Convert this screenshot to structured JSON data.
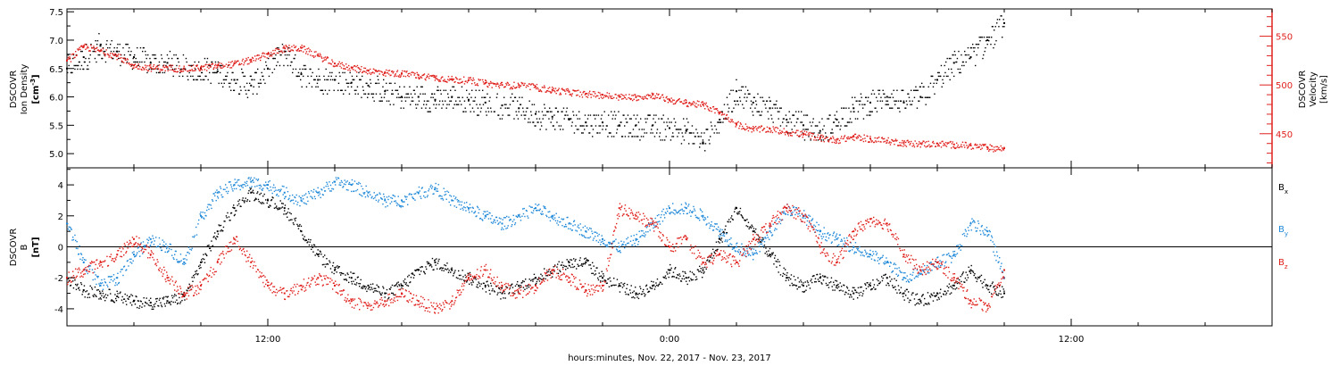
{
  "colors": {
    "black": "#000000",
    "red": "#e0201c",
    "blue": "#1e88d8"
  },
  "xaxis": {
    "label": "hours:minutes, Nov. 22, 2017 - Nov. 23, 2017",
    "range_hours": [
      6,
      42
    ],
    "ticks": [
      {
        "hour": 12,
        "label": "12:00"
      },
      {
        "hour": 24,
        "label": "0:00"
      },
      {
        "hour": 36,
        "label": "12:00"
      }
    ],
    "minor_step_hours": 2
  },
  "chart_data": [
    {
      "type": "scatter",
      "name": "plasma",
      "ylabel_lines": [
        "DSCOVR",
        "Ion Density"
      ],
      "yunit": "[cm^-3]",
      "ylim": [
        4.75,
        7.55
      ],
      "yticks": [
        5.0,
        5.5,
        6.0,
        6.5,
        7.0,
        7.5
      ],
      "y2label_lines": [
        "DSCOVR",
        "Velocity"
      ],
      "y2unit": "[km/s]",
      "y2lim": [
        415,
        578
      ],
      "y2ticks": [
        450,
        500,
        550
      ],
      "series": [
        {
          "name": "",
          "axis": "left",
          "color": "black",
          "x": [
            6.0,
            6.5,
            7.0,
            7.5,
            8.0,
            8.5,
            9.0,
            9.5,
            10.0,
            10.5,
            11.0,
            11.5,
            12.0,
            12.5,
            13.0,
            13.5,
            14.0,
            14.5,
            15.0,
            15.5,
            16.0,
            16.5,
            17.0,
            17.5,
            18.0,
            18.5,
            19.0,
            19.5,
            20.0,
            20.5,
            21.0,
            21.5,
            22.0,
            22.5,
            23.0,
            23.5,
            24.0,
            24.5,
            25.0,
            25.5,
            26.0,
            26.5,
            27.0,
            27.5,
            28.0,
            28.5,
            29.0,
            29.5,
            30.0,
            30.5,
            31.0,
            31.5,
            32.0,
            32.5,
            33.0,
            33.5,
            34.0
          ],
          "y": [
            6.5,
            6.7,
            6.9,
            6.8,
            6.7,
            6.6,
            6.6,
            6.5,
            6.5,
            6.45,
            6.3,
            6.2,
            6.5,
            6.8,
            6.4,
            6.3,
            6.3,
            6.25,
            6.2,
            6.1,
            6.0,
            6.0,
            5.95,
            6.0,
            5.95,
            5.9,
            5.85,
            5.8,
            5.7,
            5.65,
            5.6,
            5.55,
            5.55,
            5.5,
            5.5,
            5.5,
            5.45,
            5.4,
            5.2,
            5.6,
            6.1,
            5.9,
            5.8,
            5.6,
            5.5,
            5.4,
            5.6,
            5.8,
            5.9,
            6.0,
            5.9,
            6.0,
            6.3,
            6.6,
            6.7,
            7.0,
            7.3
          ]
        },
        {
          "name": "",
          "axis": "right",
          "color": "red",
          "x": [
            6.0,
            6.5,
            7.0,
            7.5,
            8.0,
            8.5,
            9.0,
            9.5,
            10.0,
            10.5,
            11.0,
            11.5,
            12.0,
            12.5,
            13.0,
            13.5,
            14.0,
            14.5,
            15.0,
            15.5,
            16.0,
            16.5,
            17.0,
            17.5,
            18.0,
            18.5,
            19.0,
            19.5,
            20.0,
            20.5,
            21.0,
            21.5,
            22.0,
            22.5,
            23.0,
            23.5,
            24.0,
            24.5,
            25.0,
            25.5,
            26.0,
            26.5,
            27.0,
            27.5,
            28.0,
            28.5,
            29.0,
            29.5,
            30.0,
            30.5,
            31.0,
            31.5,
            32.0,
            32.5,
            33.0,
            33.5,
            34.0
          ],
          "y": [
            525,
            540,
            535,
            530,
            520,
            518,
            518,
            517,
            518,
            520,
            522,
            526,
            532,
            538,
            538,
            530,
            522,
            518,
            515,
            513,
            512,
            510,
            508,
            506,
            505,
            502,
            500,
            500,
            498,
            495,
            493,
            491,
            490,
            488,
            488,
            490,
            485,
            482,
            480,
            472,
            460,
            455,
            455,
            452,
            450,
            446,
            444,
            447,
            445,
            443,
            441,
            440,
            440,
            439,
            438,
            436,
            435
          ]
        }
      ]
    },
    {
      "type": "scatter",
      "name": "magnetic field",
      "ylabel_lines": [
        "DSCOVR",
        "B"
      ],
      "yunit": "[nT]",
      "ylim": [
        -5.1,
        5.1
      ],
      "yticks": [
        -4,
        -2,
        0,
        2,
        4
      ],
      "zero_line": true,
      "series": [
        {
          "name": "Bx",
          "label_main": "B",
          "label_sub": "x",
          "color": "black",
          "x": [
            6.0,
            6.5,
            7.0,
            7.5,
            8.0,
            8.5,
            9.0,
            9.5,
            10.0,
            10.5,
            11.0,
            11.5,
            12.0,
            12.5,
            13.0,
            13.5,
            14.0,
            14.5,
            15.0,
            15.5,
            16.0,
            16.5,
            17.0,
            17.5,
            18.0,
            18.5,
            19.0,
            19.5,
            20.0,
            20.5,
            21.0,
            21.5,
            22.0,
            22.5,
            23.0,
            23.5,
            24.0,
            24.5,
            25.0,
            25.5,
            26.0,
            26.5,
            27.0,
            27.5,
            28.0,
            28.5,
            29.0,
            29.5,
            30.0,
            30.5,
            31.0,
            31.5,
            32.0,
            32.5,
            33.0,
            33.5,
            34.0
          ],
          "y": [
            -2.0,
            -2.8,
            -3.0,
            -3.2,
            -3.5,
            -3.6,
            -3.5,
            -3.2,
            -1.0,
            1.0,
            2.5,
            3.5,
            3.0,
            2.5,
            1.0,
            -0.5,
            -1.5,
            -2.0,
            -2.5,
            -3.0,
            -2.5,
            -1.5,
            -1.0,
            -1.5,
            -2.0,
            -2.5,
            -3.0,
            -2.5,
            -2.0,
            -1.5,
            -1.0,
            -1.0,
            -2.0,
            -2.5,
            -3.0,
            -2.5,
            -1.5,
            -2.0,
            -1.5,
            0.5,
            2.5,
            1.0,
            -0.5,
            -2.0,
            -2.5,
            -2.0,
            -2.5,
            -3.0,
            -2.5,
            -2.0,
            -3.0,
            -3.5,
            -3.0,
            -2.5,
            -1.5,
            -2.5,
            -3.0
          ]
        },
        {
          "name": "By",
          "label_main": "B",
          "label_sub": "y",
          "color": "blue",
          "x": [
            6.0,
            6.5,
            7.0,
            7.5,
            8.0,
            8.5,
            9.0,
            9.5,
            10.0,
            10.5,
            11.0,
            11.5,
            12.0,
            12.5,
            13.0,
            13.5,
            14.0,
            14.5,
            15.0,
            15.5,
            16.0,
            16.5,
            17.0,
            17.5,
            18.0,
            18.5,
            19.0,
            19.5,
            20.0,
            20.5,
            21.0,
            21.5,
            22.0,
            22.5,
            23.0,
            23.5,
            24.0,
            24.5,
            25.0,
            25.5,
            26.0,
            26.5,
            27.0,
            27.5,
            28.0,
            28.5,
            29.0,
            29.5,
            30.0,
            30.5,
            31.0,
            31.5,
            32.0,
            32.5,
            33.0,
            33.5,
            34.0
          ],
          "y": [
            1.5,
            -1.0,
            -2.5,
            -2.0,
            -0.5,
            0.5,
            0.0,
            -1.0,
            2.0,
            3.5,
            4.0,
            4.2,
            4.0,
            3.5,
            3.0,
            3.5,
            4.2,
            4.0,
            3.5,
            3.0,
            3.0,
            3.5,
            3.8,
            3.0,
            2.5,
            2.0,
            1.5,
            2.0,
            2.5,
            2.0,
            1.5,
            1.0,
            0.5,
            0.0,
            0.5,
            1.5,
            2.5,
            2.5,
            2.0,
            1.0,
            0.0,
            -0.5,
            1.0,
            2.5,
            2.0,
            1.0,
            0.5,
            0.0,
            -0.5,
            -1.0,
            -2.0,
            -1.5,
            -1.0,
            -0.5,
            1.5,
            1.0,
            -2.0
          ]
        },
        {
          "name": "Bz",
          "label_main": "B",
          "label_sub": "z",
          "color": "red",
          "x": [
            6.0,
            6.5,
            7.0,
            7.5,
            8.0,
            8.5,
            9.0,
            9.5,
            10.0,
            10.5,
            11.0,
            11.5,
            12.0,
            12.5,
            13.0,
            13.5,
            14.0,
            14.5,
            15.0,
            15.5,
            16.0,
            16.5,
            17.0,
            17.5,
            18.0,
            18.5,
            19.0,
            19.5,
            20.0,
            20.5,
            21.0,
            21.5,
            22.0,
            22.5,
            23.0,
            23.5,
            24.0,
            24.5,
            25.0,
            25.5,
            26.0,
            26.5,
            27.0,
            27.5,
            28.0,
            28.5,
            29.0,
            29.5,
            30.0,
            30.5,
            31.0,
            31.5,
            32.0,
            32.5,
            33.0,
            33.5,
            34.0
          ],
          "y": [
            -2.0,
            -1.5,
            -1.0,
            -0.5,
            0.5,
            -0.5,
            -2.0,
            -3.0,
            -2.5,
            -1.0,
            0.5,
            -1.0,
            -2.5,
            -3.0,
            -2.5,
            -2.0,
            -2.5,
            -3.5,
            -3.8,
            -3.5,
            -3.0,
            -3.5,
            -4.0,
            -3.5,
            -2.0,
            -1.5,
            -2.5,
            -3.0,
            -2.5,
            -1.5,
            -2.0,
            -2.8,
            -2.5,
            2.5,
            2.0,
            1.5,
            0.0,
            0.5,
            -1.0,
            -0.5,
            -1.0,
            0.5,
            1.5,
            2.5,
            2.0,
            0.0,
            -1.0,
            1.0,
            1.8,
            1.5,
            -0.5,
            -1.5,
            -1.0,
            -2.0,
            -3.5,
            -3.8,
            -1.5
          ]
        }
      ]
    }
  ]
}
